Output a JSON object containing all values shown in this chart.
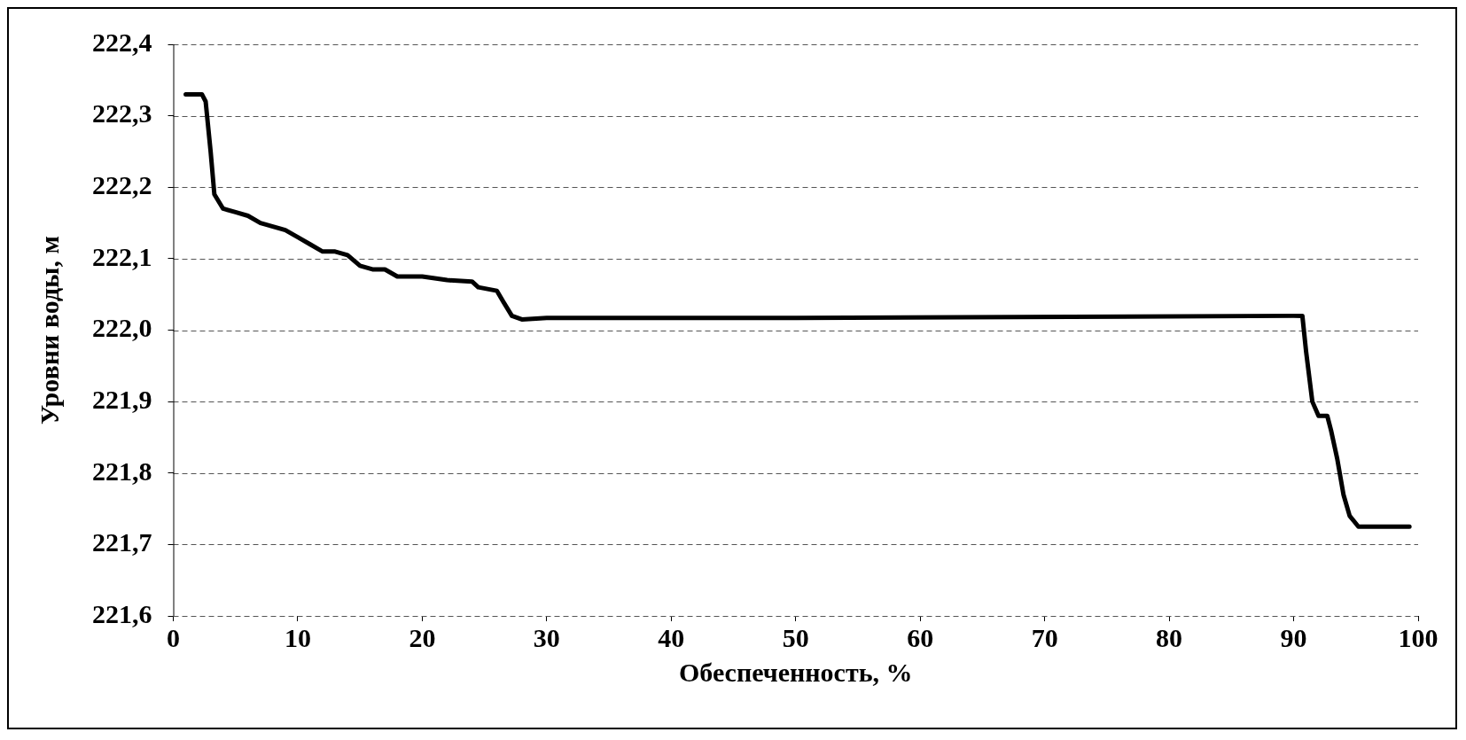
{
  "chart_data": {
    "type": "line",
    "xlabel": "Обеспеченность, %",
    "ylabel": "Уровни воды, м",
    "xlim": [
      0,
      100
    ],
    "xticks": [
      0,
      10,
      20,
      30,
      40,
      50,
      60,
      70,
      80,
      90,
      100
    ],
    "ylim": [
      221.6,
      222.4
    ],
    "yticks": [
      {
        "value": 221.6,
        "label": "221,6"
      },
      {
        "value": 221.7,
        "label": "221,7"
      },
      {
        "value": 221.8,
        "label": "221,8"
      },
      {
        "value": 221.9,
        "label": "221,9"
      },
      {
        "value": 222.0,
        "label": "222,0"
      },
      {
        "value": 222.1,
        "label": "222,1"
      },
      {
        "value": 222.2,
        "label": "222,2"
      },
      {
        "value": 222.3,
        "label": "222,3"
      },
      {
        "value": 222.4,
        "label": "222,4"
      }
    ],
    "grid": "y",
    "legend": false,
    "marker": "none",
    "line_style": "solid",
    "series": [
      {
        "color": "#000000",
        "x": [
          1,
          2.3,
          2.6,
          3,
          3.3,
          4,
          5,
          6,
          7,
          8,
          9,
          10,
          11,
          12,
          13,
          14,
          15,
          16,
          17,
          18,
          20,
          22,
          24,
          24.5,
          26,
          26.5,
          27.2,
          28,
          30,
          50,
          90,
          90.7,
          91,
          91.5,
          92,
          92.7,
          93,
          93.5,
          94,
          94.5,
          95.2,
          96,
          99.3
        ],
        "values": [
          222.33,
          222.33,
          222.32,
          222.25,
          222.19,
          222.17,
          222.165,
          222.16,
          222.15,
          222.145,
          222.14,
          222.13,
          222.12,
          222.11,
          222.11,
          222.105,
          222.09,
          222.085,
          222.085,
          222.075,
          222.075,
          222.07,
          222.068,
          222.06,
          222.055,
          222.04,
          222.02,
          222.015,
          222.017,
          222.017,
          222.02,
          222.02,
          221.97,
          221.9,
          221.88,
          221.88,
          221.86,
          221.82,
          221.77,
          221.74,
          221.725,
          221.725,
          221.725
        ]
      }
    ]
  }
}
